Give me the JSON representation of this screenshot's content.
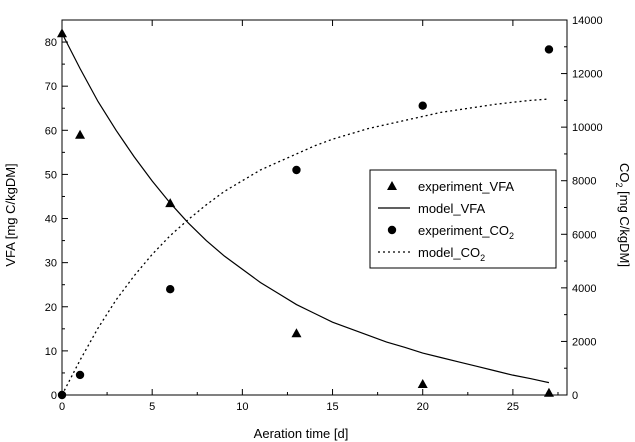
{
  "chart_data": {
    "type": "scatter",
    "title": "",
    "xlabel": "Aeration time [d]",
    "ylabel_left": "VFA [mg C/kgDM]",
    "ylabel_right": {
      "main": "CO",
      "sub": "2",
      "rest": " [mg C/kgDM]"
    },
    "xlim": [
      0,
      28
    ],
    "ylim_left": [
      0,
      85
    ],
    "ylim_right": [
      0,
      14000
    ],
    "x_ticks": [
      0,
      5,
      10,
      15,
      20,
      25
    ],
    "y_ticks_left": [
      0,
      10,
      20,
      30,
      40,
      50,
      60,
      70,
      80
    ],
    "y_ticks_right": [
      0,
      2000,
      4000,
      6000,
      8000,
      10000,
      12000,
      14000
    ],
    "grid": false,
    "legend_position": "right",
    "series": [
      {
        "name": "experiment_VFA",
        "name_parts": {
          "main": "experiment_VFA",
          "sub": ""
        },
        "kind": "scatter",
        "marker": "triangle",
        "axis": "left",
        "x": [
          0,
          1,
          6,
          13,
          20,
          27
        ],
        "y": [
          82,
          59,
          43.5,
          14,
          2.5,
          0.5
        ]
      },
      {
        "name": "model_VFA",
        "name_parts": {
          "main": "model_VFA",
          "sub": ""
        },
        "kind": "line",
        "style": "solid",
        "axis": "left",
        "x": [
          0,
          1,
          2,
          3,
          4,
          5,
          6,
          7,
          8,
          9,
          10,
          11,
          12,
          13,
          14,
          15,
          16,
          17,
          18,
          19,
          20,
          21,
          22,
          23,
          24,
          25,
          26,
          27
        ],
        "y": [
          82,
          74,
          66.5,
          60,
          54,
          48.5,
          43.5,
          39,
          35,
          31.5,
          28.5,
          25.5,
          23,
          20.5,
          18.5,
          16.5,
          15,
          13.5,
          12,
          10.8,
          9.5,
          8.5,
          7.5,
          6.5,
          5.5,
          4.5,
          3.7,
          2.8
        ]
      },
      {
        "name": "experiment_CO2",
        "name_parts": {
          "main": "experiment_CO",
          "sub": "2"
        },
        "kind": "scatter",
        "marker": "circle",
        "axis": "right",
        "x": [
          0,
          1,
          6,
          13,
          20,
          27
        ],
        "y": [
          0,
          750,
          3950,
          8400,
          10800,
          12900
        ]
      },
      {
        "name": "model_CO2",
        "name_parts": {
          "main": "model_CO",
          "sub": "2"
        },
        "kind": "line",
        "style": "dotted",
        "axis": "right",
        "x": [
          0,
          1,
          2,
          3,
          4,
          5,
          6,
          7,
          8,
          9,
          10,
          11,
          12,
          13,
          14,
          15,
          16,
          17,
          18,
          19,
          20,
          21,
          22,
          23,
          24,
          25,
          26,
          27
        ],
        "y": [
          0,
          1300,
          2500,
          3550,
          4450,
          5250,
          5950,
          6550,
          7100,
          7600,
          8000,
          8400,
          8700,
          9000,
          9300,
          9550,
          9750,
          9950,
          10100,
          10250,
          10400,
          10550,
          10650,
          10750,
          10850,
          10930,
          11000,
          11050
        ]
      }
    ]
  }
}
